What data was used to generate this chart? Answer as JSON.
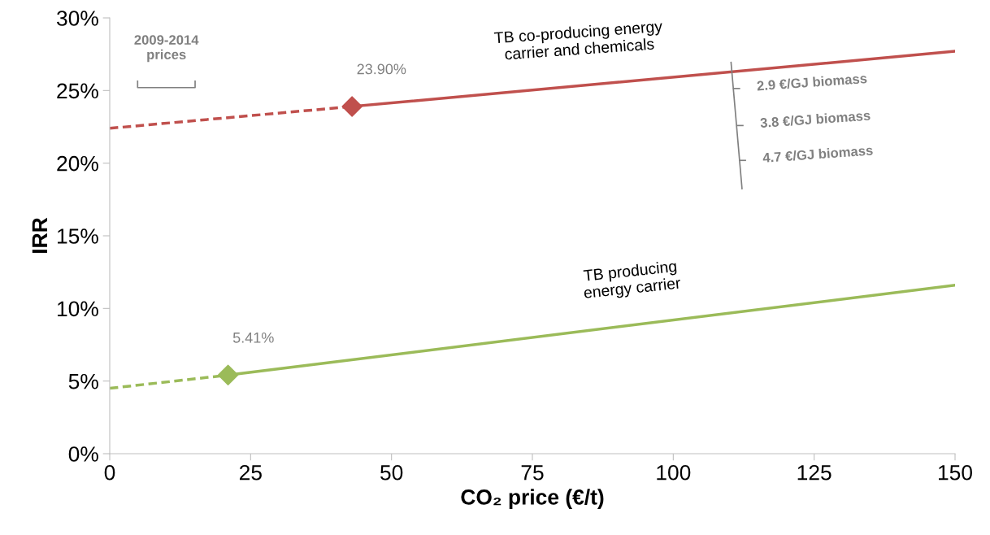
{
  "chart_data": {
    "type": "line",
    "xlabel": "CO₂ price (€/t)",
    "ylabel": "IRR",
    "xlim": [
      0,
      150
    ],
    "xticks": [
      0,
      25,
      50,
      75,
      100,
      125,
      150
    ],
    "ylim": [
      0,
      30
    ],
    "yticks": [
      {
        "value": 0,
        "label": "0%"
      },
      {
        "value": 5,
        "label": "5%"
      },
      {
        "value": 10,
        "label": "10%"
      },
      {
        "value": 15,
        "label": "15%"
      },
      {
        "value": 20,
        "label": "20%"
      },
      {
        "value": 25,
        "label": "25%"
      },
      {
        "value": 30,
        "label": "30%"
      }
    ],
    "grid": false,
    "line_style": "dashed",
    "series": [
      {
        "color": "#c0504d",
        "x": [
          0,
          43,
          150
        ],
        "values": [
          22.4,
          23.9,
          27.7
        ],
        "value_labels": [
          null,
          "23.90%",
          null
        ]
      },
      {
        "color": "#9bbb59",
        "x": [
          0,
          21,
          150
        ],
        "values": [
          4.5,
          5.41,
          11.6
        ],
        "value_labels": [
          null,
          "5.41%",
          null
        ]
      },
      {
        "type": "scatter",
        "color": "#c0504d",
        "marker": "diamond",
        "x": [
          43
        ],
        "values": [
          23.9
        ]
      },
      {
        "type": "scatter",
        "color": "#9bbb59",
        "marker": "diamond",
        "x": [
          21
        ],
        "values": [
          5.41
        ]
      }
    ],
    "annotations": [
      "TB co-producing energy\ncarrier and chemicals",
      "TB producing\nenergy carrier",
      "2009-2014\nprices",
      "2.9 €/GJ biomass",
      "3.8 €/GJ biomass",
      "4.7 €/GJ biomass"
    ]
  }
}
